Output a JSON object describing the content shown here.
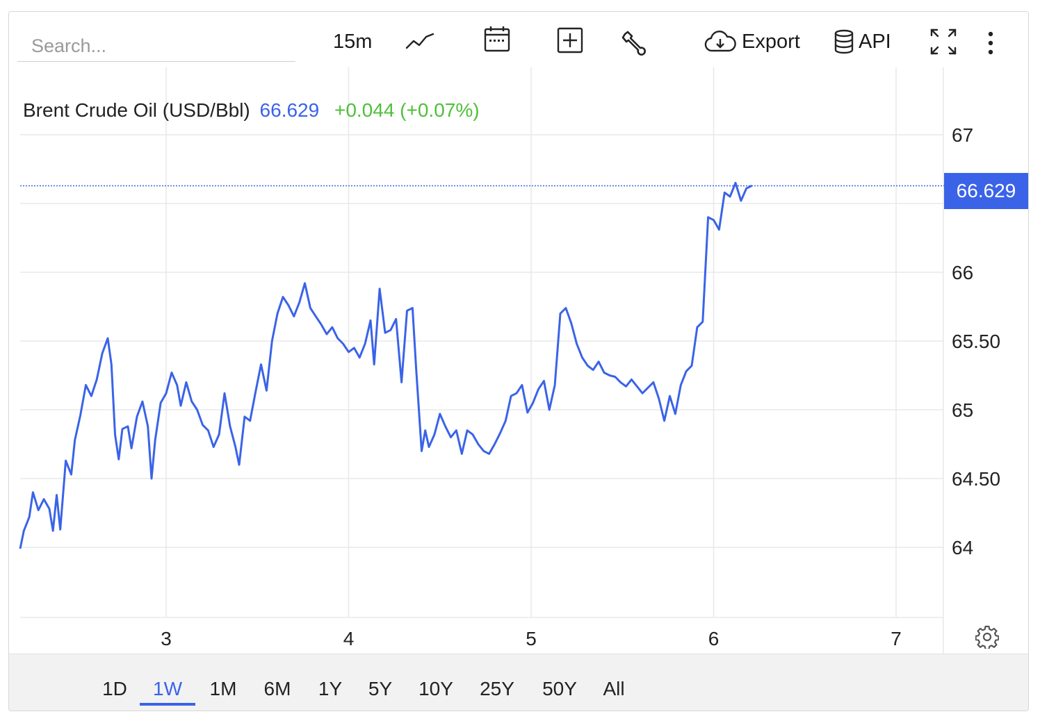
{
  "search": {
    "placeholder": "Search..."
  },
  "toolbar": {
    "interval_label": "15m",
    "chart_type_icon": "line-chart-icon",
    "date_icon": "calendar-icon",
    "compare_icon": "plus-square-icon",
    "indicators_icon": "wrench-icon",
    "export_label": "Export",
    "export_icon": "cloud-download-icon",
    "api_label": "API",
    "api_icon": "database-icon",
    "fullscreen_icon": "expand-icon",
    "more_icon": "more-vertical-icon"
  },
  "legend": {
    "name": "Brent Crude Oil (USD/Bbl)",
    "price": "66.629",
    "change": "+0.044 (+0.07%)"
  },
  "last_price_tag": "66.629",
  "colors": {
    "accent": "#3a63e8",
    "positive": "#4fbf3a",
    "grid": "#e8e8e8"
  },
  "ranges": [
    "1D",
    "1W",
    "1M",
    "6M",
    "1Y",
    "5Y",
    "10Y",
    "25Y",
    "50Y",
    "All"
  ],
  "active_range": "1W",
  "settings_icon": "gear-icon",
  "chart_data": {
    "type": "line",
    "x_ticks": [
      "3",
      "4",
      "5",
      "6",
      "7"
    ],
    "y_ticks": [
      "64",
      "64.50",
      "65",
      "65.50",
      "66",
      "67"
    ],
    "ylim": [
      63.5,
      67.5
    ],
    "xlim": [
      2.2,
      7.25
    ],
    "grid": true,
    "last_value": 66.629,
    "series": [
      {
        "points": [
          [
            2.2,
            63.99
          ],
          [
            2.22,
            64.12
          ],
          [
            2.25,
            64.22
          ],
          [
            2.27,
            64.4
          ],
          [
            2.3,
            64.27
          ],
          [
            2.33,
            64.35
          ],
          [
            2.36,
            64.28
          ],
          [
            2.38,
            64.12
          ],
          [
            2.4,
            64.38
          ],
          [
            2.42,
            64.13
          ],
          [
            2.45,
            64.63
          ],
          [
            2.48,
            64.53
          ],
          [
            2.5,
            64.78
          ],
          [
            2.53,
            64.96
          ],
          [
            2.56,
            65.18
          ],
          [
            2.59,
            65.1
          ],
          [
            2.62,
            65.22
          ],
          [
            2.65,
            65.41
          ],
          [
            2.68,
            65.52
          ],
          [
            2.7,
            65.33
          ],
          [
            2.72,
            64.82
          ],
          [
            2.74,
            64.64
          ],
          [
            2.76,
            64.86
          ],
          [
            2.79,
            64.88
          ],
          [
            2.81,
            64.72
          ],
          [
            2.84,
            64.95
          ],
          [
            2.87,
            65.06
          ],
          [
            2.9,
            64.88
          ],
          [
            2.92,
            64.5
          ],
          [
            2.94,
            64.78
          ],
          [
            2.97,
            65.05
          ],
          [
            3.0,
            65.12
          ],
          [
            3.03,
            65.27
          ],
          [
            3.06,
            65.18
          ],
          [
            3.08,
            65.03
          ],
          [
            3.11,
            65.2
          ],
          [
            3.14,
            65.06
          ],
          [
            3.17,
            65.0
          ],
          [
            3.2,
            64.89
          ],
          [
            3.23,
            64.85
          ],
          [
            3.26,
            64.73
          ],
          [
            3.29,
            64.82
          ],
          [
            3.32,
            65.12
          ],
          [
            3.35,
            64.88
          ],
          [
            3.38,
            64.73
          ],
          [
            3.4,
            64.6
          ],
          [
            3.43,
            64.95
          ],
          [
            3.46,
            64.92
          ],
          [
            3.49,
            65.13
          ],
          [
            3.52,
            65.33
          ],
          [
            3.55,
            65.14
          ],
          [
            3.58,
            65.5
          ],
          [
            3.61,
            65.7
          ],
          [
            3.64,
            65.82
          ],
          [
            3.67,
            65.76
          ],
          [
            3.7,
            65.68
          ],
          [
            3.73,
            65.78
          ],
          [
            3.76,
            65.92
          ],
          [
            3.79,
            65.74
          ],
          [
            3.82,
            65.68
          ],
          [
            3.85,
            65.62
          ],
          [
            3.88,
            65.55
          ],
          [
            3.91,
            65.6
          ],
          [
            3.94,
            65.52
          ],
          [
            3.97,
            65.48
          ],
          [
            4.0,
            65.42
          ],
          [
            4.03,
            65.45
          ],
          [
            4.06,
            65.38
          ],
          [
            4.09,
            65.48
          ],
          [
            4.12,
            65.65
          ],
          [
            4.14,
            65.33
          ],
          [
            4.17,
            65.88
          ],
          [
            4.2,
            65.56
          ],
          [
            4.23,
            65.58
          ],
          [
            4.26,
            65.66
          ],
          [
            4.29,
            65.2
          ],
          [
            4.32,
            65.72
          ],
          [
            4.35,
            65.74
          ],
          [
            4.37,
            65.3
          ],
          [
            4.4,
            64.7
          ],
          [
            4.42,
            64.85
          ],
          [
            4.44,
            64.73
          ],
          [
            4.47,
            64.82
          ],
          [
            4.5,
            64.97
          ],
          [
            4.53,
            64.88
          ],
          [
            4.56,
            64.8
          ],
          [
            4.59,
            64.85
          ],
          [
            4.62,
            64.68
          ],
          [
            4.65,
            64.85
          ],
          [
            4.68,
            64.82
          ],
          [
            4.71,
            64.75
          ],
          [
            4.74,
            64.7
          ],
          [
            4.77,
            64.68
          ],
          [
            4.8,
            64.75
          ],
          [
            4.83,
            64.83
          ],
          [
            4.86,
            64.92
          ],
          [
            4.89,
            65.1
          ],
          [
            4.92,
            65.12
          ],
          [
            4.95,
            65.18
          ],
          [
            4.98,
            64.98
          ],
          [
            5.01,
            65.05
          ],
          [
            5.04,
            65.15
          ],
          [
            5.07,
            65.21
          ],
          [
            5.1,
            65.0
          ],
          [
            5.13,
            65.18
          ],
          [
            5.16,
            65.7
          ],
          [
            5.19,
            65.74
          ],
          [
            5.22,
            65.63
          ],
          [
            5.25,
            65.48
          ],
          [
            5.28,
            65.38
          ],
          [
            5.31,
            65.32
          ],
          [
            5.34,
            65.29
          ],
          [
            5.37,
            65.35
          ],
          [
            5.4,
            65.27
          ],
          [
            5.43,
            65.25
          ],
          [
            5.46,
            65.24
          ],
          [
            5.49,
            65.2
          ],
          [
            5.52,
            65.17
          ],
          [
            5.55,
            65.22
          ],
          [
            5.58,
            65.17
          ],
          [
            5.61,
            65.12
          ],
          [
            5.64,
            65.16
          ],
          [
            5.67,
            65.2
          ],
          [
            5.7,
            65.08
          ],
          [
            5.73,
            64.92
          ],
          [
            5.76,
            65.1
          ],
          [
            5.79,
            64.97
          ],
          [
            5.82,
            65.18
          ],
          [
            5.85,
            65.28
          ],
          [
            5.88,
            65.32
          ],
          [
            5.91,
            65.6
          ],
          [
            5.94,
            65.64
          ],
          [
            5.97,
            66.4
          ],
          [
            6.0,
            66.38
          ],
          [
            6.03,
            66.31
          ],
          [
            6.06,
            66.58
          ],
          [
            6.09,
            66.55
          ],
          [
            6.12,
            66.65
          ],
          [
            6.15,
            66.52
          ],
          [
            6.18,
            66.61
          ],
          [
            6.21,
            66.63
          ]
        ]
      }
    ]
  }
}
